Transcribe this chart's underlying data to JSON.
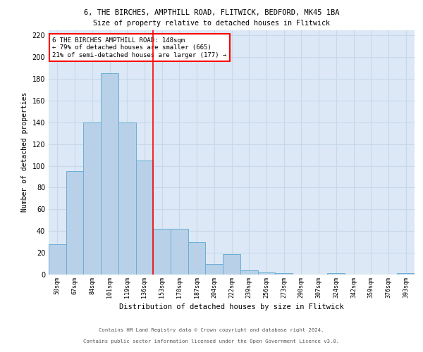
{
  "title1": "6, THE BIRCHES, AMPTHILL ROAD, FLITWICK, BEDFORD, MK45 1BA",
  "title2": "Size of property relative to detached houses in Flitwick",
  "xlabel": "Distribution of detached houses by size in Flitwick",
  "ylabel": "Number of detached properties",
  "bins": [
    "50sqm",
    "67sqm",
    "84sqm",
    "101sqm",
    "119sqm",
    "136sqm",
    "153sqm",
    "170sqm",
    "187sqm",
    "204sqm",
    "222sqm",
    "239sqm",
    "256sqm",
    "273sqm",
    "290sqm",
    "307sqm",
    "324sqm",
    "342sqm",
    "359sqm",
    "376sqm",
    "393sqm"
  ],
  "values": [
    28,
    95,
    140,
    185,
    140,
    105,
    42,
    42,
    30,
    10,
    19,
    4,
    2,
    1,
    0,
    0,
    1,
    0,
    0,
    0,
    1
  ],
  "bar_color": "#b8d0e8",
  "bar_edge_color": "#6aaed6",
  "vline_color": "red",
  "vline_bin_index": 5,
  "annotation_text": "6 THE BIRCHES AMPTHILL ROAD: 148sqm\n← 79% of detached houses are smaller (665)\n21% of semi-detached houses are larger (177) →",
  "annotation_box_color": "white",
  "annotation_box_edge": "red",
  "grid_color": "#c8d8ea",
  "background_color": "#dce8f5",
  "ylim": [
    0,
    225
  ],
  "yticks": [
    0,
    20,
    40,
    60,
    80,
    100,
    120,
    140,
    160,
    180,
    200,
    220
  ],
  "footer1": "Contains HM Land Registry data © Crown copyright and database right 2024.",
  "footer2": "Contains public sector information licensed under the Open Government Licence v3.0."
}
